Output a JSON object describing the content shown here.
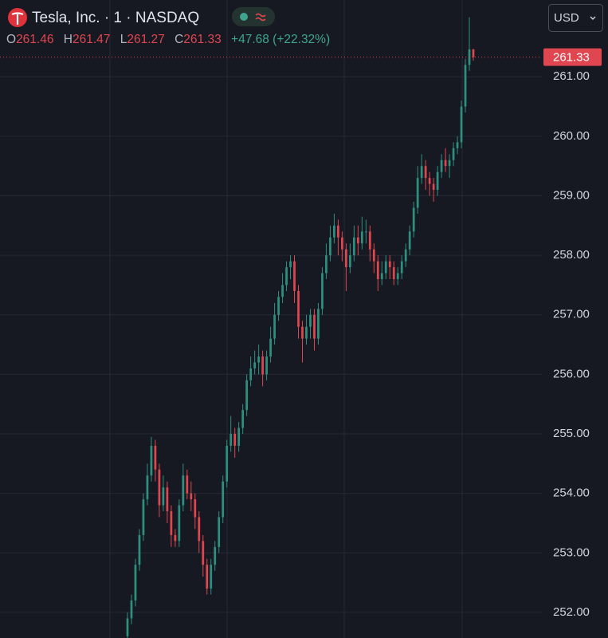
{
  "header": {
    "title": "Tesla, Inc. · 1 · NASDAQ",
    "open_label": "O",
    "open": 261.46,
    "high_label": "H",
    "high": 261.47,
    "low_label": "L",
    "low": 261.27,
    "close_label": "C",
    "close": 261.33,
    "change": "+47.68 (+22.32%)",
    "currency": "USD"
  },
  "chart_data": {
    "type": "candlestick",
    "open": [
      251.6,
      251.9,
      252.2,
      252.8,
      253.3,
      253.9,
      254.3,
      254.8,
      254.4,
      253.8,
      254.1,
      253.7,
      253.3,
      253.2,
      253.8,
      254.3,
      254.0,
      253.9,
      253.6,
      253.2,
      252.8,
      252.4,
      252.8,
      253.1,
      253.6,
      254.2,
      254.8,
      255.0,
      254.8,
      255.1,
      255.4,
      255.9,
      256.1,
      256.2,
      256.3,
      256.0,
      256.3,
      256.6,
      257.0,
      257.3,
      257.5,
      257.8,
      257.9,
      257.4,
      256.8,
      256.6,
      256.8,
      257.0,
      256.6,
      257.1,
      257.7,
      258.0,
      258.3,
      258.5,
      258.3,
      258.1,
      257.8,
      258.0,
      258.3,
      258.2,
      258.4,
      258.4,
      258.1,
      257.9,
      257.6,
      257.7,
      257.9,
      257.8,
      257.6,
      257.7,
      257.9,
      258.1,
      258.4,
      258.8,
      259.3,
      259.5,
      259.3,
      259.2,
      259.1,
      259.4,
      259.6,
      259.5,
      259.6,
      259.8,
      259.9,
      260.5,
      261.2,
      261.46
    ],
    "high": [
      252.0,
      252.3,
      252.9,
      253.4,
      254.0,
      254.5,
      254.95,
      254.9,
      254.5,
      254.3,
      254.2,
      253.8,
      253.4,
      253.9,
      254.5,
      254.4,
      254.2,
      254.0,
      253.7,
      253.3,
      252.9,
      252.9,
      253.2,
      253.7,
      254.3,
      254.9,
      255.3,
      255.1,
      255.2,
      255.5,
      256.0,
      256.3,
      256.4,
      256.5,
      256.4,
      256.4,
      256.8,
      257.2,
      257.4,
      257.7,
      257.9,
      258.0,
      258.0,
      257.5,
      256.9,
      257.0,
      257.1,
      257.1,
      257.2,
      257.8,
      258.2,
      258.5,
      258.7,
      258.6,
      258.4,
      258.2,
      258.2,
      258.5,
      258.5,
      258.65,
      258.6,
      258.5,
      258.2,
      258.0,
      257.9,
      258.0,
      258.0,
      257.9,
      257.8,
      258.0,
      258.2,
      258.5,
      258.9,
      259.5,
      259.7,
      259.6,
      259.4,
      259.3,
      259.5,
      259.7,
      259.8,
      259.7,
      259.9,
      260.0,
      260.6,
      261.3,
      262.0,
      261.47
    ],
    "low": [
      251.5,
      251.8,
      252.1,
      252.7,
      253.2,
      253.8,
      254.2,
      254.2,
      253.6,
      253.7,
      253.5,
      253.1,
      253.1,
      253.1,
      253.7,
      253.9,
      253.7,
      253.4,
      253.0,
      252.6,
      252.3,
      252.3,
      252.7,
      253.0,
      253.5,
      254.1,
      254.7,
      254.6,
      254.7,
      255.0,
      255.3,
      255.8,
      256.0,
      256.0,
      255.8,
      255.9,
      256.2,
      256.5,
      256.9,
      257.2,
      257.4,
      257.6,
      257.2,
      256.6,
      256.2,
      256.5,
      256.6,
      256.4,
      256.5,
      257.0,
      257.6,
      257.9,
      258.2,
      258.0,
      257.9,
      257.4,
      257.7,
      257.9,
      258.0,
      258.1,
      258.2,
      257.9,
      257.7,
      257.4,
      257.5,
      257.6,
      257.6,
      257.5,
      257.5,
      257.6,
      257.8,
      258.0,
      258.3,
      258.7,
      259.2,
      259.1,
      259.0,
      258.9,
      259.0,
      259.3,
      259.4,
      259.3,
      259.5,
      259.7,
      259.8,
      260.4,
      261.1,
      261.27
    ],
    "close": [
      251.9,
      252.2,
      252.8,
      253.3,
      253.9,
      254.3,
      254.8,
      254.4,
      253.8,
      254.1,
      253.7,
      253.3,
      253.2,
      253.8,
      254.3,
      254.0,
      253.9,
      253.6,
      253.2,
      252.8,
      252.4,
      252.8,
      253.1,
      253.6,
      254.2,
      254.8,
      255.0,
      254.8,
      255.1,
      255.4,
      255.9,
      256.1,
      256.2,
      256.3,
      256.0,
      256.3,
      256.6,
      257.0,
      257.3,
      257.5,
      257.8,
      257.9,
      257.4,
      256.8,
      256.6,
      256.8,
      257.0,
      256.6,
      257.1,
      257.7,
      258.0,
      258.3,
      258.5,
      258.3,
      258.1,
      257.8,
      258.0,
      258.3,
      258.2,
      258.4,
      258.4,
      258.1,
      257.9,
      257.6,
      257.7,
      257.9,
      257.8,
      257.6,
      257.7,
      257.9,
      258.1,
      258.4,
      258.8,
      259.3,
      259.5,
      259.3,
      259.2,
      259.1,
      259.4,
      259.6,
      259.5,
      259.6,
      259.8,
      259.9,
      260.5,
      261.2,
      261.46,
      261.33
    ],
    "up_color": "#2f8f7f",
    "down_color": "#e0464f",
    "last_price": 261.33,
    "ylim": [
      251.57,
      262.29
    ],
    "yticks": [
      {
        "value": 252,
        "label": "252.00"
      },
      {
        "value": 253,
        "label": "253.00"
      },
      {
        "value": 254,
        "label": "254.00"
      },
      {
        "value": 255,
        "label": "255.00"
      },
      {
        "value": 256,
        "label": "256.00"
      },
      {
        "value": 257,
        "label": "257.00"
      },
      {
        "value": 258,
        "label": "258.00"
      },
      {
        "value": 259,
        "label": "259.00"
      },
      {
        "value": 260,
        "label": "260.00"
      },
      {
        "value": 261,
        "label": "261.00"
      }
    ],
    "grid": true
  }
}
